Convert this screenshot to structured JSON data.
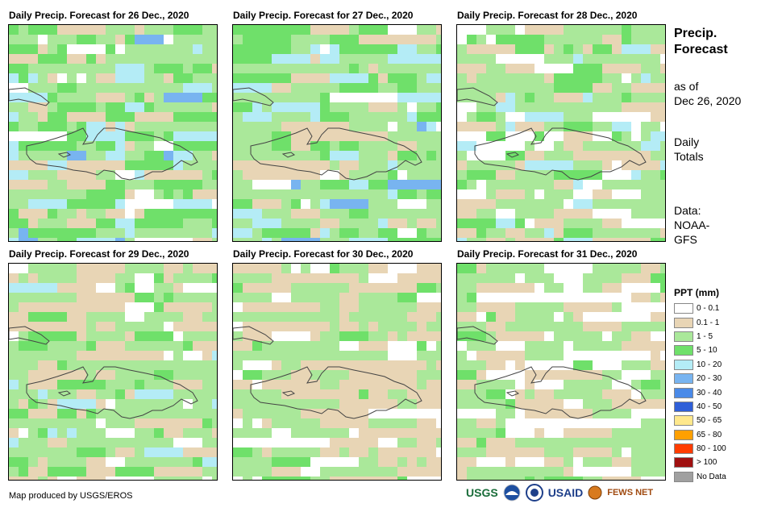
{
  "panels": [
    {
      "title": "Daily Precip. Forecast for 26 Dec., 2020",
      "seed": 3,
      "base": "wet"
    },
    {
      "title": "Daily Precip. Forecast for 27 Dec., 2020",
      "seed": 7,
      "base": "wet2"
    },
    {
      "title": "Daily Precip. Forecast for 28 Dec., 2020",
      "seed": 11,
      "base": "mid"
    },
    {
      "title": "Daily Precip. Forecast for 29 Dec., 2020",
      "seed": 17,
      "base": "mid"
    },
    {
      "title": "Daily Precip. Forecast for 30 Dec., 2020",
      "seed": 23,
      "base": "dry"
    },
    {
      "title": "Daily Precip. Forecast for 31 Dec., 2020",
      "seed": 29,
      "base": "dry2"
    }
  ],
  "side": {
    "title_line1": "Precip.",
    "title_line2": "Forecast",
    "asof_line1": "as of",
    "asof_line2": "Dec 26, 2020",
    "totals_line1": "Daily",
    "totals_line2": "Totals",
    "data_line1": "Data:",
    "data_line2": "NOAA-",
    "data_line3": "GFS"
  },
  "legend": {
    "title": "PPT (mm)",
    "items": [
      {
        "label": "0 - 0.1",
        "color": "#ffffff"
      },
      {
        "label": "0.1 - 1",
        "color": "#e8d5b5"
      },
      {
        "label": "1 - 5",
        "color": "#aae89a"
      },
      {
        "label": "5 - 10",
        "color": "#6fe06a"
      },
      {
        "label": "10 - 20",
        "color": "#b4ecf6"
      },
      {
        "label": "20 - 30",
        "color": "#78b4f0"
      },
      {
        "label": "30 - 40",
        "color": "#4a8ae8"
      },
      {
        "label": "40 - 50",
        "color": "#2f5fd8"
      },
      {
        "label": "50 - 65",
        "color": "#ffe88c"
      },
      {
        "label": "65 - 80",
        "color": "#ffa000"
      },
      {
        "label": "80 - 100",
        "color": "#ff3c00"
      },
      {
        "label": "> 100",
        "color": "#a01010"
      },
      {
        "label": "No Data",
        "color": "#a0a0a0"
      }
    ]
  },
  "footer": {
    "credit": "Map produced by USGS/EROS"
  },
  "logos": {
    "usgs": "USGS",
    "usaid": "USAID",
    "fews": "FEWS NET"
  }
}
